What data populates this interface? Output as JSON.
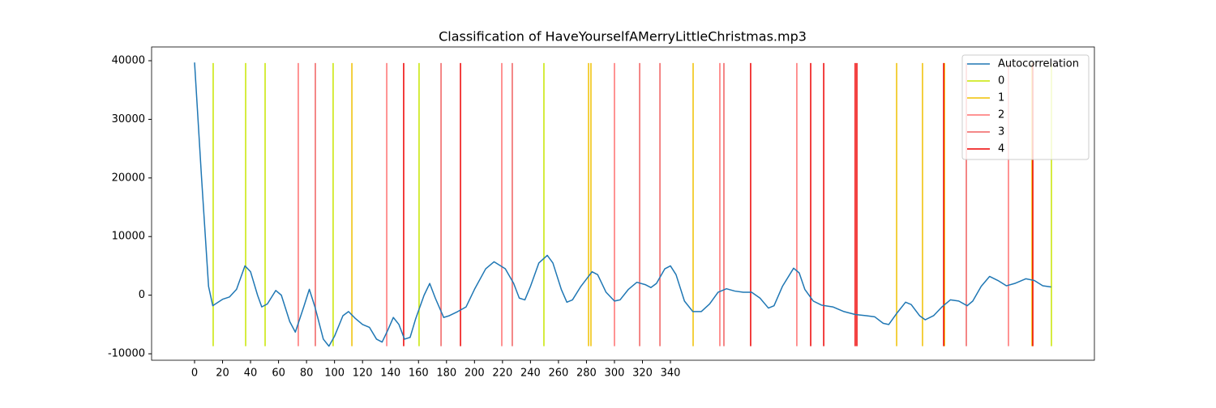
{
  "chart_data": {
    "type": "line",
    "title": "Classification of HaveYourselfAMerryLittleChristmas.mp3",
    "series": [
      {
        "name": "Autocorrelation",
        "color": "#1f77b4",
        "x": [
          0,
          5,
          10,
          13,
          20,
          25,
          30,
          36,
          40,
          45,
          48,
          52,
          58,
          62,
          68,
          72,
          78,
          82,
          86,
          92,
          96,
          100,
          106,
          110,
          115,
          120,
          125,
          130,
          134,
          138,
          142,
          146,
          150,
          154,
          158,
          164,
          168,
          172,
          178,
          182,
          188,
          194,
          200,
          208,
          214,
          222,
          228,
          232,
          236,
          240,
          246,
          252,
          256,
          262,
          266,
          270,
          276,
          284,
          288,
          294,
          300,
          304,
          310,
          316,
          322,
          326,
          330,
          336,
          340,
          344,
          350,
          356,
          362,
          368,
          374,
          380,
          386,
          392,
          398,
          404,
          410,
          414,
          420,
          428,
          432,
          436,
          442,
          448,
          456,
          464,
          472,
          480,
          486,
          492,
          496,
          502,
          508,
          512,
          518,
          522,
          528,
          534,
          540,
          546,
          552,
          556,
          562,
          568,
          574,
          580,
          586,
          594,
          600,
          606,
          612
        ],
        "values": [
          39700,
          20000,
          1500,
          -1800,
          -700,
          -300,
          1000,
          5000,
          4000,
          0,
          -2000,
          -1500,
          800,
          0,
          -4500,
          -6300,
          -2000,
          1000,
          -2000,
          -7500,
          -8700,
          -7000,
          -3500,
          -2800,
          -4000,
          -5000,
          -5500,
          -7500,
          -8000,
          -6000,
          -3800,
          -5000,
          -7500,
          -7200,
          -4000,
          0,
          2000,
          -500,
          -3800,
          -3500,
          -2800,
          -2000,
          1000,
          4500,
          5700,
          4500,
          2000,
          -500,
          -800,
          1500,
          5500,
          6800,
          5500,
          1000,
          -1200,
          -800,
          1500,
          4000,
          3500,
          500,
          -1000,
          -800,
          1000,
          2200,
          1800,
          1300,
          2000,
          4500,
          5000,
          3500,
          -1000,
          -2800,
          -2800,
          -1500,
          500,
          1100,
          700,
          500,
          500,
          -500,
          -2200,
          -1800,
          1500,
          4600,
          3800,
          1000,
          -1000,
          -1700,
          -2000,
          -2800,
          -3300,
          -3500,
          -3700,
          -4800,
          -5000,
          -3000,
          -1200,
          -1600,
          -3500,
          -4200,
          -3500,
          -2000,
          -800,
          -1000,
          -1800,
          -1000,
          1500,
          3200,
          2500,
          1600,
          2000,
          2800,
          2500,
          1600,
          1400
        ]
      }
    ],
    "vlines": [
      {
        "name": "0",
        "color": "#c8e600",
        "x": [
          13.3,
          36.5,
          50.4,
          99.0,
          160.4,
          249.6,
          612.2
        ]
      },
      {
        "name": "1",
        "color": "#f0c000",
        "x": [
          112.4,
          281.5,
          283.2,
          356.2,
          501.6,
          520.1,
          535.8,
          598.3
        ]
      },
      {
        "name": "2",
        "color": "#ff7070",
        "x": [
          74.1,
          137.3,
          219.5,
          300.0,
          375.3,
          430.3,
          581.5
        ]
      },
      {
        "name": "3",
        "color": "#f06060",
        "x": [
          86.3,
          176.1,
          227.0,
          318.0,
          332.5,
          378.2,
          551.4
        ]
      },
      {
        "name": "4",
        "color": "#ee0000",
        "x": [
          149.4,
          190.0,
          397.3,
          440.2,
          449.5,
          472.0,
          473.2,
          535.2,
          598.9
        ]
      }
    ],
    "vline_ylim": [
      -8700,
      39600
    ],
    "xlim": [
      -30.7,
      642.9
    ],
    "ylim": [
      -11100,
      42350
    ],
    "xticks": [
      0,
      20,
      40,
      60,
      80,
      100,
      120,
      140,
      160,
      180,
      200,
      220,
      240,
      260,
      280,
      300,
      320,
      340
    ],
    "yticks": [
      -10000,
      0,
      10000,
      20000,
      30000,
      40000
    ],
    "legend": "upper right"
  }
}
